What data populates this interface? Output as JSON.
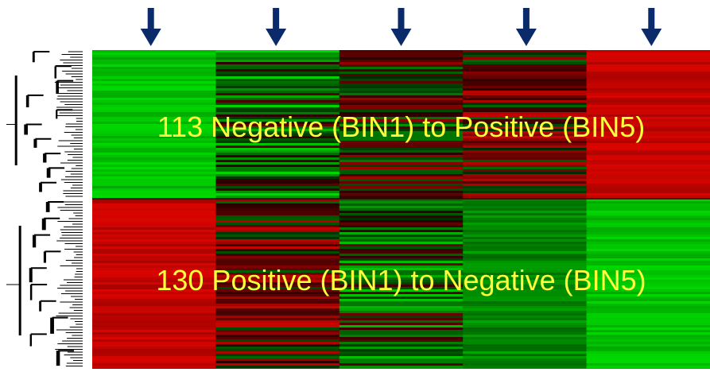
{
  "heatmap": {
    "columns": 5,
    "marked_columns": [
      1,
      2,
      3,
      4,
      5
    ],
    "colors": {
      "positive": "#cc0000",
      "neutral": "#2a0000",
      "negative": "#00cc00",
      "arrow": "#0a2a6a",
      "label": "#ffff3c"
    },
    "clusters": [
      {
        "label": "113 Negative (BIN1) to Positive (BIN5)",
        "gene_count": 113,
        "column_trend": [
          -0.9,
          -0.35,
          0.05,
          0.25,
          0.9
        ]
      },
      {
        "label": "130 Positive (BIN1) to Negative (BIN5)",
        "gene_count": 130,
        "column_trend": [
          0.9,
          0.3,
          -0.25,
          -0.55,
          -0.9
        ]
      }
    ]
  }
}
